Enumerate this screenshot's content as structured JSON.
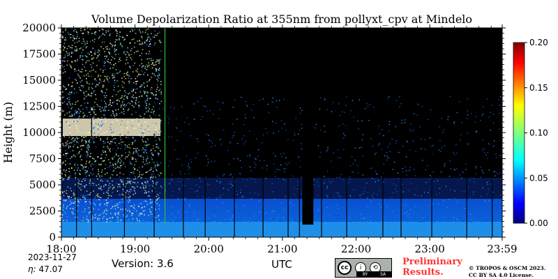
{
  "chart_data": {
    "type": "heatmap",
    "title": "Volume Depolarization Ratio at 355nm from pollyxt_cpv at Mindelo",
    "xlabel": "UTC",
    "ylabel": "Height (m)",
    "x_ticks": [
      "18:00",
      "19:00",
      "20:00",
      "21:00",
      "22:00",
      "23:00",
      "23:59"
    ],
    "x_tick_hours": [
      0,
      1,
      2,
      3,
      4,
      5,
      5.983
    ],
    "xlim_hours": [
      0,
      5.983
    ],
    "y_ticks": [
      0,
      2500,
      5000,
      7500,
      10000,
      12500,
      15000,
      17500,
      20000
    ],
    "ylim": [
      0,
      20000
    ],
    "colorbar": {
      "ticks": [
        "0.00",
        "0.05",
        "0.10",
        "0.15",
        "0.20"
      ],
      "range": [
        0,
        0.2
      ],
      "colormap": "jet"
    },
    "features": {
      "boundary_layer_top_m": 1500,
      "boundary_layer_depol": 0.02,
      "cirrus_layer": {
        "start_hours": 0,
        "end_hours": 1.35,
        "base_m": 9500,
        "top_m": 11000,
        "depol": 0.15
      },
      "blocked_periods_hours": [
        [
          3.27,
          3.42
        ]
      ]
    }
  },
  "footer": {
    "date": "2023-11-27",
    "eta_label": "η:",
    "eta_value": "47.07",
    "version": "Version: 3.6",
    "preliminary_line1": "Preliminary",
    "preliminary_line2": "Results.",
    "copyright_line1": "© TROPOS & OSCM 2023.",
    "copyright_line2": "CC BY SA 4.0 License."
  },
  "license_badge": {
    "cc": "cc",
    "by": "BY",
    "sa": "SA"
  },
  "colors": {
    "plot_background": "#000000",
    "preliminary_text": "#ff3333",
    "badge_gray": "#aab2ab"
  }
}
